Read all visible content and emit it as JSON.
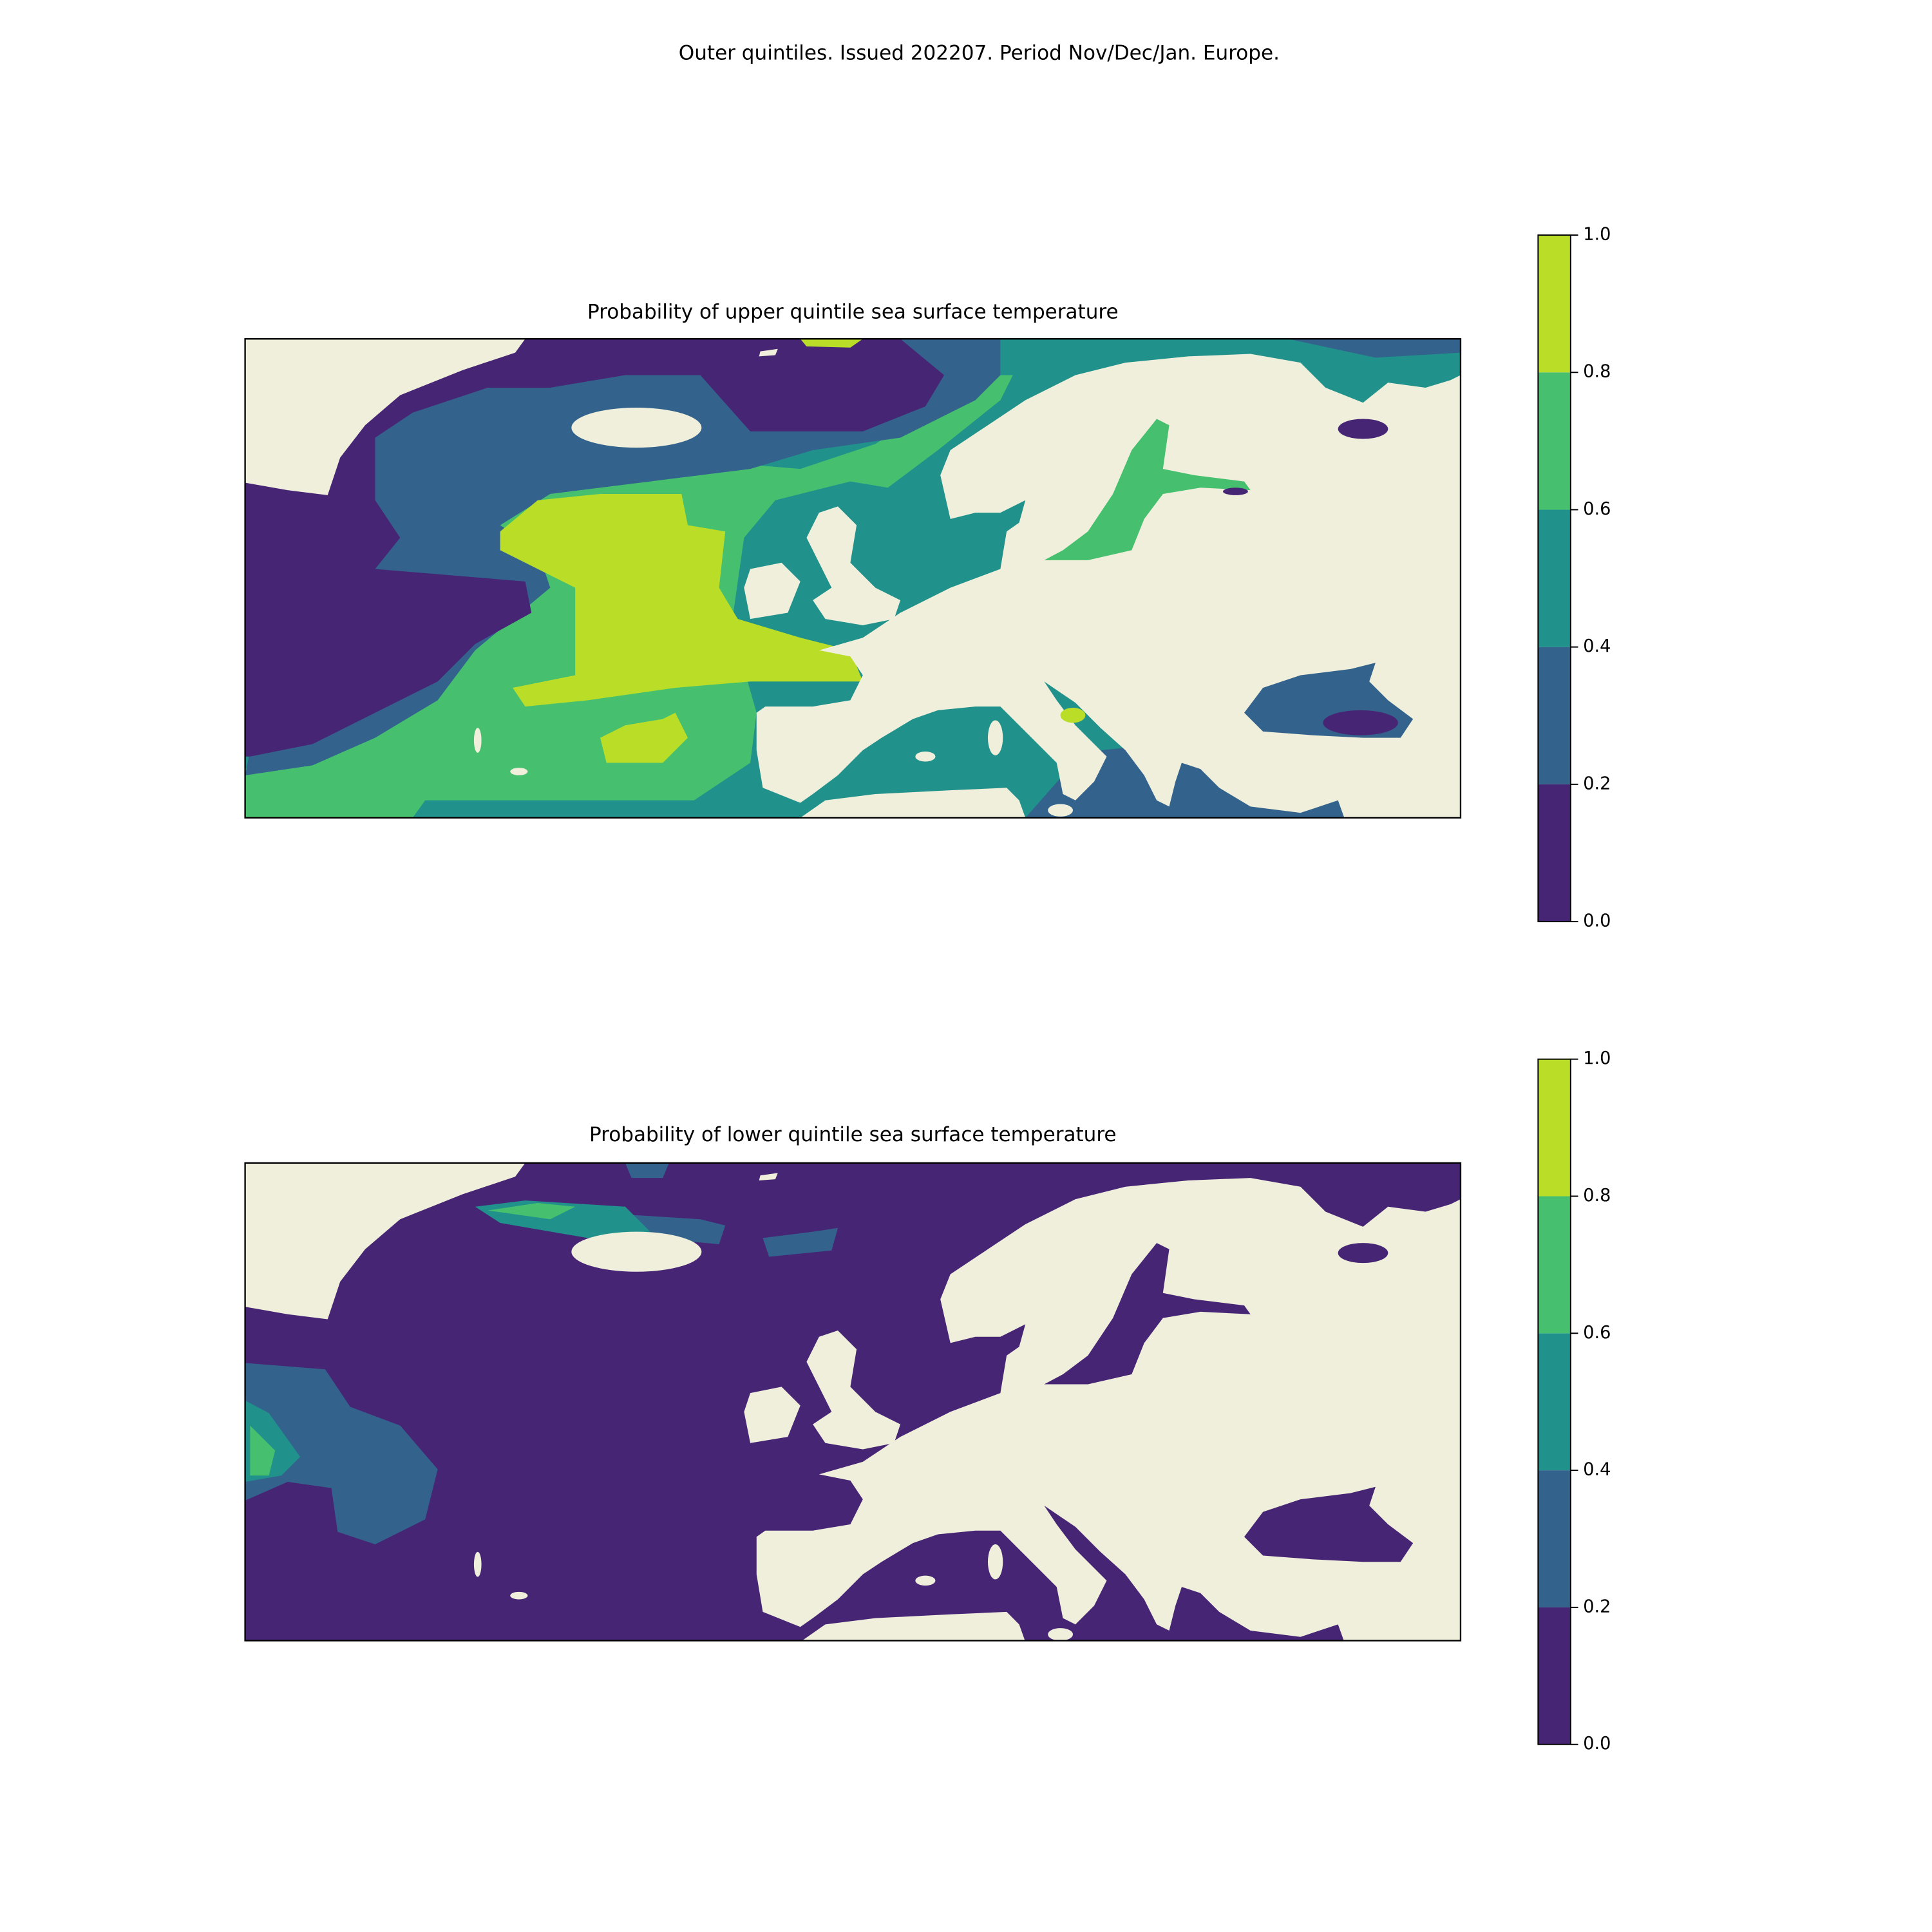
{
  "title": "Outer quintiles. Issued 202207. Period Nov/Dec/Jan. Europe.",
  "panels": [
    {
      "title": "Probability of upper quintile sea surface temperature",
      "colorbar": {
        "clim": [
          0,
          1
        ],
        "ticks": [
          {
            "value": 0,
            "label": "0.0"
          },
          0.2,
          0.4,
          0.6,
          0.8,
          {
            "value": 1,
            "label": "1.0"
          }
        ],
        "colors": [
          "#472575",
          "#33638d",
          "#21918c",
          "#46c06f",
          "#bade28"
        ]
      }
    },
    {
      "title": "Probability of lower quintile sea surface temperature",
      "colorbar": {
        "clim": [
          0,
          1
        ],
        "ticks": [
          {
            "value": 0,
            "label": "0.0"
          },
          0.2,
          0.4,
          0.6,
          0.8,
          {
            "value": 1,
            "label": "1.0"
          }
        ],
        "colors": [
          "#472575",
          "#33638d",
          "#21918c",
          "#46c06f",
          "#bade28"
        ]
      }
    }
  ]
}
